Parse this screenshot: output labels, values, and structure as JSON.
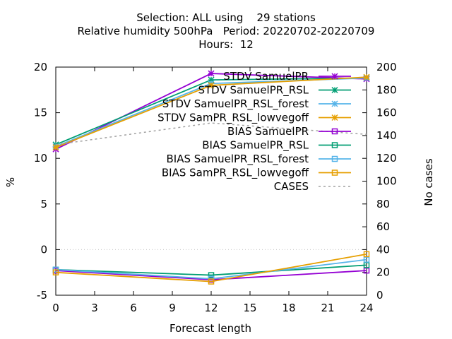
{
  "title_lines": [
    "Selection: ALL using    29 stations",
    "Relative humidity 500hPa   Period: 20220702-20220709",
    "Hours:  12"
  ],
  "chart_data": {
    "type": "line",
    "xlabel": "Forecast length",
    "ylabel": "%",
    "y2label": "No cases",
    "xlim": [
      0,
      24
    ],
    "ylim": [
      -5,
      20
    ],
    "y2lim": [
      0,
      200
    ],
    "xticks": [
      0,
      3,
      6,
      9,
      12,
      15,
      18,
      21,
      24
    ],
    "yticks": [
      -5,
      0,
      5,
      10,
      15,
      20
    ],
    "y2ticks": [
      0,
      20,
      40,
      60,
      80,
      100,
      120,
      140,
      160,
      180,
      200
    ],
    "legend_position": "top-right",
    "x": [
      0,
      12,
      24
    ],
    "series": [
      {
        "name": "STDV SamuelPR",
        "color": "#9400d3",
        "marker": "star",
        "dash": false,
        "axis": "y",
        "values": [
          11.0,
          19.3,
          18.7
        ]
      },
      {
        "name": "STDV SamuelPR_RSL",
        "color": "#009e73",
        "marker": "star",
        "dash": false,
        "axis": "y",
        "values": [
          11.5,
          18.6,
          18.8
        ]
      },
      {
        "name": "STDV SamuelPR_RSL_forest",
        "color": "#56b4e9",
        "marker": "star",
        "dash": false,
        "axis": "y",
        "values": [
          11.3,
          18.2,
          18.8
        ]
      },
      {
        "name": "STDV SamPR_RSL_lowvegoff",
        "color": "#e69f00",
        "marker": "star",
        "dash": false,
        "axis": "y",
        "values": [
          11.2,
          18.0,
          18.9
        ]
      },
      {
        "name": "BIAS SamuelPR",
        "color": "#9400d3",
        "marker": "square",
        "dash": false,
        "axis": "y",
        "values": [
          -2.3,
          -3.3,
          -2.3
        ]
      },
      {
        "name": "BIAS SamuelPR_RSL",
        "color": "#009e73",
        "marker": "square",
        "dash": false,
        "axis": "y",
        "values": [
          -2.2,
          -2.8,
          -1.7
        ]
      },
      {
        "name": "BIAS SamuelPR_RSL_forest",
        "color": "#56b4e9",
        "marker": "square",
        "dash": false,
        "axis": "y",
        "values": [
          -2.2,
          -3.2,
          -1.1
        ]
      },
      {
        "name": "BIAS SamPR_RSL_lowvegoff",
        "color": "#e69f00",
        "marker": "square",
        "dash": false,
        "axis": "y",
        "values": [
          -2.5,
          -3.5,
          -0.5
        ]
      },
      {
        "name": "CASES",
        "color": "#a0a0a0",
        "marker": "none",
        "dash": true,
        "axis": "y2",
        "values": [
          132,
          151,
          141
        ]
      }
    ]
  }
}
